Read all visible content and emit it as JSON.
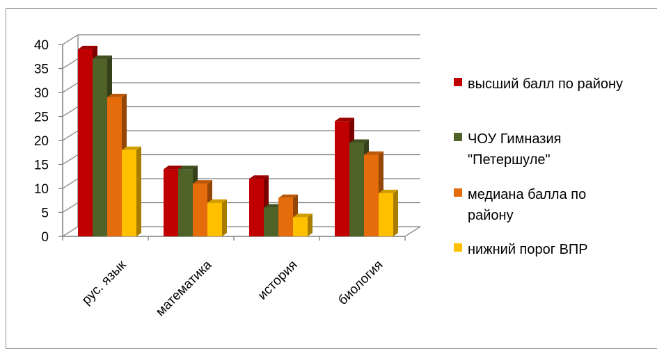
{
  "chart_data": {
    "type": "bar",
    "title": "",
    "xlabel": "",
    "ylabel": "",
    "ylim": [
      0,
      40
    ],
    "y_ticks": [
      "0",
      "5",
      "10",
      "15",
      "20",
      "25",
      "30",
      "35",
      "40"
    ],
    "grid": true,
    "legend_position": "right",
    "categories": [
      "рус. язык",
      "математика",
      "история",
      "биология"
    ],
    "series": [
      {
        "name": "высший балл по району",
        "color": "#c00000",
        "values": [
          39,
          14,
          12,
          24
        ]
      },
      {
        "name": "ЧОУ Гимназия \"Петершуле\"",
        "color": "#4f6228",
        "values": [
          37,
          14,
          6,
          19.5
        ]
      },
      {
        "name": "медиана балла по району",
        "color": "#e46c0a",
        "values": [
          29,
          11,
          8,
          17
        ]
      },
      {
        "name": "нижний порог ВПР",
        "color": "#ffc000",
        "values": [
          18,
          7,
          4,
          9
        ]
      }
    ]
  }
}
